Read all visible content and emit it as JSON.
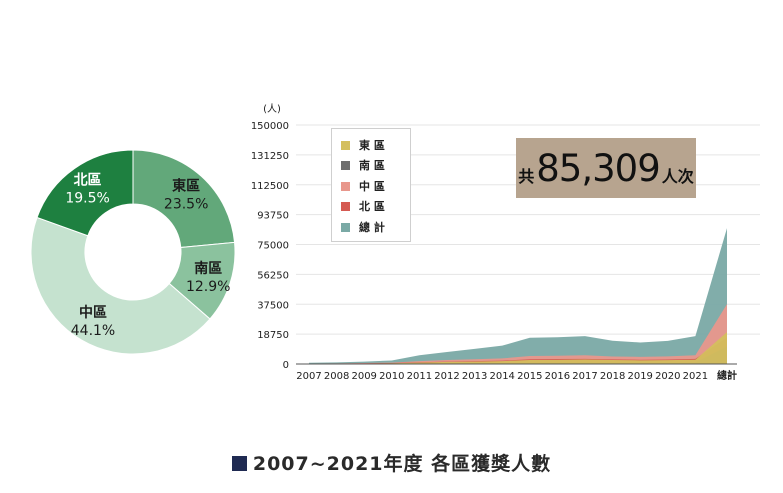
{
  "pie": {
    "slices": [
      {
        "name": "東區",
        "label": "23.5%",
        "value": 23.5,
        "color": "#62a87a",
        "text_color": "#1b1b1b"
      },
      {
        "name": "南區",
        "label": "12.9%",
        "value": 12.9,
        "color": "#8bc29e",
        "text_color": "#1b1b1b"
      },
      {
        "name": "中區",
        "label": "44.1%",
        "value": 44.1,
        "color": "#c5e2cf",
        "text_color": "#1b1b1b"
      },
      {
        "name": "北區",
        "label": "19.5%",
        "value": 19.5,
        "color": "#1e8040",
        "text_color": "#ffffff"
      }
    ]
  },
  "chart_data": {
    "type": "area",
    "ylabel": "(人)",
    "ylim": [
      0,
      150000
    ],
    "yticks": [
      "0",
      "18750",
      "37500",
      "56250",
      "75000",
      "93750",
      "112500",
      "131250",
      "150000"
    ],
    "categories": [
      "2007",
      "2008",
      "2009",
      "2010",
      "2011",
      "2012",
      "2013",
      "2014",
      "2015",
      "2016",
      "2017",
      "2018",
      "2019",
      "2020",
      "2021",
      "總計"
    ],
    "series": [
      {
        "name": "東 區",
        "color": "#d4bf5e",
        "values": [
          200,
          250,
          350,
          450,
          900,
          1300,
          1500,
          1800,
          2500,
          2600,
          2800,
          2500,
          2300,
          2400,
          2700,
          20000
        ]
      },
      {
        "name": "南 區",
        "color": "#6e6e6e",
        "values": [
          100,
          120,
          150,
          200,
          400,
          500,
          600,
          700,
          900,
          900,
          1000,
          900,
          850,
          900,
          1000,
          11000
        ]
      },
      {
        "name": "中 區",
        "color": "#e8978c",
        "values": [
          300,
          400,
          600,
          900,
          1800,
          2500,
          3000,
          3500,
          5000,
          5200,
          5500,
          4700,
          4500,
          4800,
          5500,
          37600
        ]
      },
      {
        "name": "北 區",
        "color": "#d55a52",
        "values": [
          200,
          250,
          400,
          600,
          1100,
          1500,
          1800,
          2100,
          3000,
          3100,
          3200,
          2900,
          2700,
          2800,
          3200,
          16600
        ]
      },
      {
        "name": "總 計",
        "color": "#7aa9a5",
        "values": [
          800,
          1000,
          1500,
          2200,
          5500,
          7500,
          9500,
          11500,
          16500,
          16800,
          17500,
          14600,
          13500,
          14500,
          17500,
          85309
        ]
      }
    ]
  },
  "total": {
    "prefix": "共",
    "number": "85,309",
    "unit": "人次"
  },
  "caption": "2007~2021年度 各區獲獎人數"
}
